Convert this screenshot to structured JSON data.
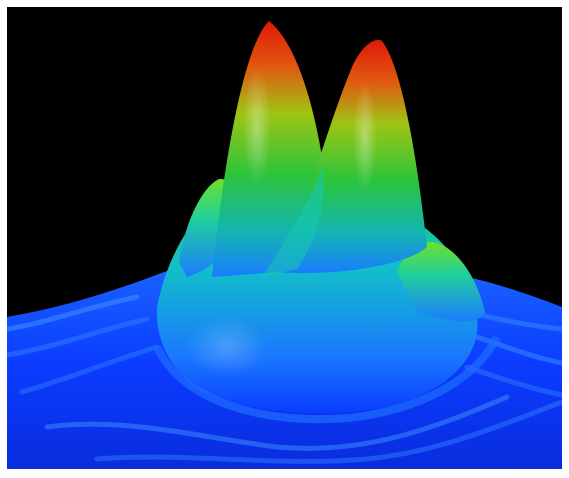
{
  "image": {
    "subject": "3d-surface-plot",
    "background_color": "#000000",
    "border_color": "#ffffff",
    "colormap": [
      "#0a2cff",
      "#1a6cff",
      "#12c8ea",
      "#22e05a",
      "#6cd81a",
      "#b8c410",
      "#e06a10",
      "#e01808"
    ],
    "peaks": 2
  }
}
